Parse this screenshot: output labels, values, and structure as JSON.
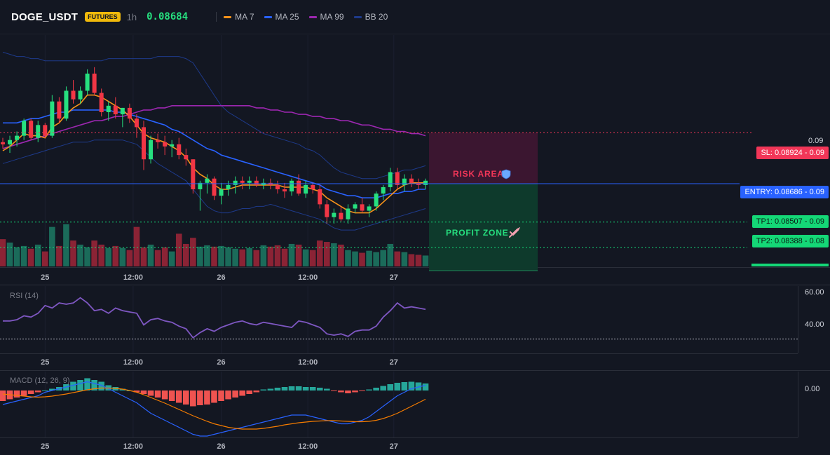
{
  "header": {
    "symbol": "DOGE_USDT",
    "badge": "FUTURES",
    "timeframe": "1h",
    "price": "0.08684"
  },
  "legend": [
    {
      "label": "MA 7",
      "color": "#f7931a"
    },
    {
      "label": "MA 25",
      "color": "#2962ff"
    },
    {
      "label": "MA 99",
      "color": "#9c27b0"
    },
    {
      "label": "BB 20",
      "color": "#1e3a8a"
    }
  ],
  "colors": {
    "up": "#26e07f",
    "down": "#f23645",
    "volUp": "#1b6b5a",
    "volDown": "#8b2335",
    "macdUp": "#26a69a",
    "macdDown": "#ef5350",
    "rsi": "#7e57c2",
    "macd": "#2962ff",
    "signal": "#f57c00"
  },
  "levels": {
    "sl": {
      "label": "SL: 0.08924",
      "right": "0.09",
      "value": 0.08924
    },
    "entry": {
      "label": "ENTRY: 0.08686",
      "right": "0.09",
      "value": 0.08686
    },
    "tp1": {
      "label": "TP1: 0.08507",
      "right": "0.09",
      "value": 0.08507
    },
    "tp2": {
      "label": "TP2: 0.08388",
      "right": "0.08",
      "value": 0.08388
    }
  },
  "zones": {
    "risk": "RISK AREA",
    "profit": "PROFIT ZONE"
  },
  "chart_data": [
    {
      "type": "candlestick",
      "x_ticks": [
        "25",
        "12:00",
        "26",
        "12:00",
        "27"
      ],
      "y_ticks": [
        "0.09"
      ],
      "ylim": [
        0.083,
        0.0938
      ],
      "candles": [
        [
          0.0888,
          0.089,
          0.0885,
          0.0887
        ],
        [
          0.0887,
          0.0891,
          0.0883,
          0.0889
        ],
        [
          0.0889,
          0.0893,
          0.0886,
          0.0891
        ],
        [
          0.0891,
          0.0899,
          0.0889,
          0.0898
        ],
        [
          0.0898,
          0.0899,
          0.0889,
          0.089
        ],
        [
          0.089,
          0.0898,
          0.0888,
          0.0896
        ],
        [
          0.0896,
          0.0897,
          0.089,
          0.0891
        ],
        [
          0.0891,
          0.091,
          0.089,
          0.0907
        ],
        [
          0.0907,
          0.0909,
          0.0897,
          0.0899
        ],
        [
          0.0899,
          0.0914,
          0.0898,
          0.0912
        ],
        [
          0.0912,
          0.0917,
          0.0906,
          0.0908
        ],
        [
          0.0908,
          0.0914,
          0.0906,
          0.0912
        ],
        [
          0.0912,
          0.0922,
          0.091,
          0.092
        ],
        [
          0.092,
          0.0923,
          0.091,
          0.0911
        ],
        [
          0.0911,
          0.0913,
          0.09,
          0.0902
        ],
        [
          0.0902,
          0.0907,
          0.0898,
          0.0905
        ],
        [
          0.0905,
          0.0909,
          0.0899,
          0.0901
        ],
        [
          0.0901,
          0.0904,
          0.0895,
          0.0904
        ],
        [
          0.0904,
          0.0906,
          0.0897,
          0.0899
        ],
        [
          0.0899,
          0.0901,
          0.089,
          0.0895
        ],
        [
          0.0895,
          0.0898,
          0.0875,
          0.088
        ],
        [
          0.088,
          0.0891,
          0.0878,
          0.0889
        ],
        [
          0.0889,
          0.0892,
          0.0885,
          0.0888
        ],
        [
          0.0888,
          0.0891,
          0.0882,
          0.0886
        ],
        [
          0.0886,
          0.0889,
          0.0881,
          0.0887
        ],
        [
          0.0887,
          0.089,
          0.088,
          0.0882
        ],
        [
          0.0882,
          0.0885,
          0.0877,
          0.088
        ],
        [
          0.088,
          0.088,
          0.0864,
          0.0866
        ],
        [
          0.0866,
          0.087,
          0.0856,
          0.0869
        ],
        [
          0.0869,
          0.0873,
          0.0864,
          0.0871
        ],
        [
          0.0871,
          0.0872,
          0.0861,
          0.0863
        ],
        [
          0.0863,
          0.0869,
          0.0859,
          0.0866
        ],
        [
          0.0866,
          0.087,
          0.0863,
          0.0868
        ],
        [
          0.0868,
          0.0872,
          0.0864,
          0.087
        ],
        [
          0.087,
          0.0872,
          0.0866,
          0.0869
        ],
        [
          0.0869,
          0.0872,
          0.0866,
          0.087
        ],
        [
          0.087,
          0.0872,
          0.0867,
          0.0868
        ],
        [
          0.0868,
          0.0871,
          0.0866,
          0.0869
        ],
        [
          0.0869,
          0.0871,
          0.0866,
          0.0868
        ],
        [
          0.0868,
          0.087,
          0.0864,
          0.0866
        ],
        [
          0.0866,
          0.0869,
          0.0862,
          0.0865
        ],
        [
          0.0865,
          0.0871,
          0.0863,
          0.087
        ],
        [
          0.087,
          0.0873,
          0.0863,
          0.0864
        ],
        [
          0.0864,
          0.087,
          0.0862,
          0.0868
        ],
        [
          0.0868,
          0.0869,
          0.0864,
          0.0866
        ],
        [
          0.0866,
          0.0868,
          0.0857,
          0.0859
        ],
        [
          0.0859,
          0.0861,
          0.085,
          0.0853
        ],
        [
          0.0853,
          0.0857,
          0.085,
          0.0855
        ],
        [
          0.0855,
          0.0858,
          0.0851,
          0.0852
        ],
        [
          0.0852,
          0.0859,
          0.085,
          0.0857
        ],
        [
          0.0857,
          0.086,
          0.0855,
          0.0859
        ],
        [
          0.0859,
          0.0862,
          0.0855,
          0.0856
        ],
        [
          0.0856,
          0.0859,
          0.0853,
          0.0858
        ],
        [
          0.0858,
          0.0865,
          0.0856,
          0.0864
        ],
        [
          0.0864,
          0.0868,
          0.0861,
          0.0867
        ],
        [
          0.0867,
          0.0876,
          0.0865,
          0.0874
        ],
        [
          0.0874,
          0.0876,
          0.0866,
          0.0868
        ],
        [
          0.0868,
          0.0873,
          0.0865,
          0.0871
        ],
        [
          0.0871,
          0.0873,
          0.0867,
          0.0869
        ],
        [
          0.0869,
          0.0871,
          0.0866,
          0.0868
        ],
        [
          0.0868,
          0.0871,
          0.0866,
          0.087
        ]
      ],
      "volume": [
        40,
        35,
        28,
        30,
        26,
        32,
        22,
        58,
        30,
        62,
        38,
        32,
        28,
        38,
        32,
        27,
        30,
        27,
        24,
        58,
        28,
        32,
        24,
        28,
        22,
        48,
        33,
        42,
        29,
        31,
        29,
        30,
        28,
        26,
        25,
        27,
        24,
        31,
        29,
        31,
        26,
        33,
        32,
        25,
        24,
        38,
        36,
        34,
        32,
        24,
        22,
        20,
        23,
        21,
        24,
        33,
        22,
        21,
        18,
        17,
        16
      ],
      "ma7": [
        0.0884,
        0.0886,
        0.0889,
        0.0892,
        0.0891,
        0.0891,
        0.089,
        0.0895,
        0.0897,
        0.0901,
        0.0904,
        0.0906,
        0.091,
        0.091,
        0.0909,
        0.0907,
        0.0905,
        0.0903,
        0.09,
        0.0896,
        0.0892,
        0.089,
        0.0889,
        0.0888,
        0.0886,
        0.0884,
        0.0881,
        0.0876,
        0.0873,
        0.0871,
        0.0868,
        0.0866,
        0.0866,
        0.0867,
        0.0868,
        0.0868,
        0.0868,
        0.0868,
        0.0868,
        0.0868,
        0.0867,
        0.0867,
        0.0867,
        0.0867,
        0.0866,
        0.0865,
        0.0862,
        0.086,
        0.0858,
        0.0856,
        0.0855,
        0.0855,
        0.0855,
        0.0857,
        0.086,
        0.0863,
        0.0866,
        0.0868,
        0.0869,
        0.0869,
        0.0869
      ],
      "ma25": [
        0.0897,
        0.0897,
        0.0897,
        0.0898,
        0.0899,
        0.0899,
        0.09,
        0.0901,
        0.0902,
        0.0902,
        0.0903,
        0.0903,
        0.0903,
        0.0903,
        0.0903,
        0.0903,
        0.0902,
        0.0902,
        0.0901,
        0.09,
        0.0899,
        0.0898,
        0.0897,
        0.0896,
        0.0894,
        0.0893,
        0.0891,
        0.0889,
        0.0887,
        0.0885,
        0.0884,
        0.0882,
        0.0881,
        0.088,
        0.0879,
        0.0878,
        0.0877,
        0.0876,
        0.0875,
        0.0874,
        0.0873,
        0.0872,
        0.0871,
        0.087,
        0.0869,
        0.0868,
        0.0866,
        0.0865,
        0.0864,
        0.0863,
        0.0863,
        0.0862,
        0.0862,
        0.0862,
        0.0863,
        0.0864,
        0.0864,
        0.0865,
        0.0865,
        0.0866,
        0.0866
      ],
      "ma99": [
        0.0885,
        0.0886,
        0.0887,
        0.0888,
        0.0889,
        0.089,
        0.0891,
        0.0892,
        0.0893,
        0.0894,
        0.0895,
        0.0896,
        0.0897,
        0.0898,
        0.0898,
        0.0899,
        0.09,
        0.09,
        0.0901,
        0.0902,
        0.0903,
        0.0903,
        0.0904,
        0.0904,
        0.0905,
        0.0905,
        0.0905,
        0.0905,
        0.0905,
        0.0905,
        0.0905,
        0.0905,
        0.0905,
        0.0905,
        0.0905,
        0.0905,
        0.0904,
        0.0904,
        0.0903,
        0.0903,
        0.0902,
        0.0902,
        0.0901,
        0.0901,
        0.09,
        0.09,
        0.0899,
        0.0899,
        0.0898,
        0.0898,
        0.0897,
        0.0896,
        0.0896,
        0.0895,
        0.0894,
        0.0894,
        0.0893,
        0.0893,
        0.0892,
        0.0892,
        0.0891
      ],
      "bb_upper": [
        0.093,
        0.0929,
        0.0928,
        0.0928,
        0.0927,
        0.0927,
        0.0926,
        0.0926,
        0.0926,
        0.0926,
        0.0926,
        0.0926,
        0.0926,
        0.0926,
        0.0926,
        0.0927,
        0.0927,
        0.0927,
        0.0927,
        0.0927,
        0.0927,
        0.0927,
        0.0928,
        0.0928,
        0.0928,
        0.0928,
        0.0927,
        0.0925,
        0.092,
        0.0915,
        0.091,
        0.0905,
        0.0902,
        0.09,
        0.0898,
        0.0896,
        0.0894,
        0.0892,
        0.0891,
        0.089,
        0.0889,
        0.0888,
        0.0887,
        0.0885,
        0.0884,
        0.0882,
        0.0879,
        0.0876,
        0.0874,
        0.0873,
        0.0872,
        0.0871,
        0.0871,
        0.0871,
        0.0872,
        0.0873,
        0.0874,
        0.0875,
        0.0875,
        0.0876,
        0.0877
      ],
      "bb_lower": [
        0.0878,
        0.0879,
        0.088,
        0.0881,
        0.0882,
        0.0883,
        0.0884,
        0.0885,
        0.0886,
        0.0887,
        0.0888,
        0.0888,
        0.0888,
        0.0889,
        0.0889,
        0.0889,
        0.0889,
        0.0889,
        0.0888,
        0.0887,
        0.0884,
        0.0881,
        0.0878,
        0.0876,
        0.0874,
        0.0872,
        0.087,
        0.0866,
        0.0862,
        0.0858,
        0.0856,
        0.0855,
        0.0855,
        0.0856,
        0.0857,
        0.0857,
        0.0858,
        0.0858,
        0.0859,
        0.0858,
        0.0857,
        0.0856,
        0.0855,
        0.0854,
        0.0853,
        0.0852,
        0.085,
        0.0848,
        0.0847,
        0.0847,
        0.0847,
        0.0848,
        0.0849,
        0.085,
        0.0851,
        0.0852,
        0.0853,
        0.0854,
        0.0855,
        0.0856,
        0.0857
      ]
    },
    {
      "type": "line",
      "title": "RSI (14)",
      "y_ticks": [
        "60.00",
        "40.00"
      ],
      "ylim": [
        20,
        70
      ],
      "values": [
        44,
        44,
        45,
        48,
        47,
        50,
        56,
        54,
        58,
        57,
        58,
        62,
        58,
        52,
        53,
        50,
        54,
        52,
        51,
        50,
        41,
        45,
        46,
        44,
        43,
        40,
        38,
        31,
        35,
        38,
        36,
        39,
        41,
        43,
        44,
        42,
        41,
        43,
        42,
        41,
        40,
        39,
        44,
        43,
        41,
        39,
        34,
        33,
        34,
        32,
        36,
        37,
        37,
        40,
        47,
        52,
        58,
        54,
        55,
        54,
        53
      ],
      "hline": 30
    },
    {
      "type": "bar",
      "title": "MACD (12, 26, 9)",
      "y_ticks": [
        "0.00"
      ],
      "ylim": [
        -13,
        5
      ],
      "histogram": [
        -3,
        -2.5,
        -2,
        -1.5,
        -1,
        -0.5,
        0,
        0.5,
        1,
        1.8,
        2.5,
        3,
        3.5,
        3,
        2.5,
        1.5,
        1,
        0.5,
        0,
        -0.5,
        -1,
        -1.5,
        -2,
        -2.5,
        -3,
        -3.5,
        -4,
        -4.5,
        -4.2,
        -4,
        -3.5,
        -3,
        -2.5,
        -2,
        -1.5,
        -1,
        -0.5,
        0.3,
        0.5,
        0.8,
        1,
        1.2,
        1.2,
        1,
        1,
        0.8,
        0.5,
        -0.2,
        -0.5,
        -0.8,
        -0.5,
        -0.2,
        0.3,
        0.8,
        1.3,
        1.8,
        2.2,
        2.4,
        2.5,
        2.3,
        2
      ],
      "macd": [
        -4,
        -3.5,
        -3,
        -2.5,
        -2,
        -1.5,
        -0.5,
        0,
        0.5,
        1,
        1.5,
        2,
        2.5,
        2,
        1.5,
        0.5,
        -0.5,
        -1.5,
        -2.5,
        -3.5,
        -5,
        -6.5,
        -7.5,
        -8.5,
        -9.5,
        -10.5,
        -11.5,
        -12.5,
        -13,
        -13,
        -12.5,
        -12,
        -11.5,
        -11,
        -10.5,
        -10,
        -9.5,
        -9,
        -8.5,
        -8,
        -7.5,
        -7,
        -7,
        -7,
        -7.5,
        -8,
        -8.5,
        -9,
        -9.5,
        -9.5,
        -9,
        -8.5,
        -7.5,
        -6,
        -4.5,
        -3,
        -1.5,
        -0.5,
        0.5,
        1,
        1.5
      ],
      "signal": [
        -1,
        -1.2,
        -1.4,
        -1.6,
        -1.8,
        -1.9,
        -1.8,
        -1.6,
        -1.3,
        -1,
        -0.6,
        -0.2,
        0.2,
        0.5,
        0.7,
        0.7,
        0.6,
        0.4,
        0,
        -0.5,
        -1.2,
        -2,
        -2.8,
        -3.6,
        -4.5,
        -5.4,
        -6.3,
        -7.2,
        -8,
        -8.8,
        -9.5,
        -10,
        -10.5,
        -10.8,
        -11,
        -11,
        -11,
        -10.8,
        -10.5,
        -10.2,
        -9.8,
        -9.5,
        -9.2,
        -9,
        -8.8,
        -8.7,
        -8.6,
        -8.6,
        -8.7,
        -8.8,
        -8.9,
        -8.9,
        -8.8,
        -8.5,
        -8,
        -7.3,
        -6.5,
        -5.5,
        -4.5,
        -3.5,
        -2.5
      ]
    }
  ]
}
